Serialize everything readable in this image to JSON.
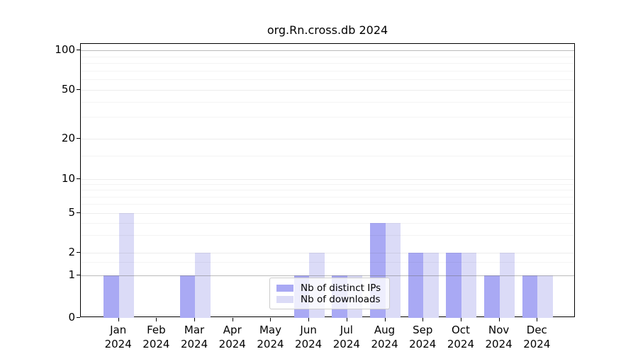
{
  "title": "org.Rn.cross.db 2024",
  "chart_data": {
    "type": "bar",
    "title": "org.Rn.cross.db 2024",
    "categories": [
      "Jan",
      "Feb",
      "Mar",
      "Apr",
      "May",
      "Jun",
      "Jul",
      "Aug",
      "Sep",
      "Oct",
      "Nov",
      "Dec"
    ],
    "category_year": "2024",
    "series": [
      {
        "name": "Nb of distinct IPs",
        "color": "#a9a9f4",
        "values": [
          1,
          0,
          1,
          0,
          0,
          1,
          1,
          4,
          2,
          2,
          1,
          1
        ]
      },
      {
        "name": "Nb of downloads",
        "color": "#dbdbf7",
        "values": [
          5,
          0,
          2,
          0,
          0,
          2,
          1,
          4,
          2,
          2,
          2,
          1
        ]
      }
    ],
    "xlabel": "",
    "ylabel": "",
    "y_axis": {
      "scale": "log-like",
      "major_ticks": [
        100,
        50,
        20,
        10,
        5,
        2,
        1,
        0
      ],
      "minor_gridline_values": [
        1.5,
        3,
        4,
        6,
        7,
        8,
        9,
        15,
        30,
        40,
        60,
        70,
        80,
        90
      ],
      "ylim": [
        0,
        100
      ]
    },
    "grid": true,
    "legend_position": "lower center",
    "legend": [
      {
        "label": "Nb of distinct IPs",
        "color": "#a9a9f4"
      },
      {
        "label": "Nb of downloads",
        "color": "#dbdbf7"
      }
    ]
  },
  "colors": {
    "distinct_ips": "#a9a9f4",
    "downloads": "#dbdbf7",
    "emphasis_gridline": "rgba(255,255,255,0)",
    "axis": "#000000",
    "legend_border": "#cccccc"
  }
}
